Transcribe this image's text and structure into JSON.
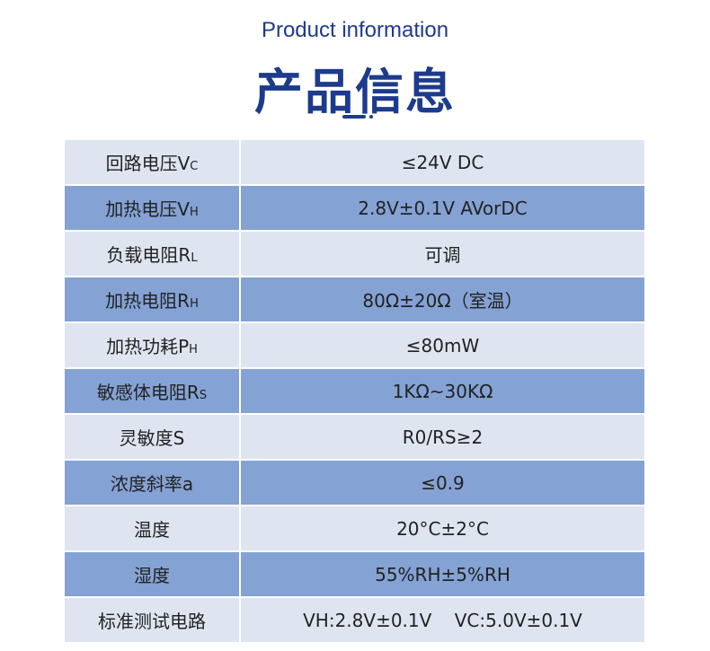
{
  "header": {
    "title_en": "Product information",
    "title_zh": "产品信息",
    "accent": "#1d3b8d"
  },
  "colors": {
    "row_light": "#dfe5f0",
    "row_dark": "#84a2d4"
  },
  "rows": [
    {
      "label": "回路电压V",
      "sub": "C",
      "value": "≤24V DC"
    },
    {
      "label": "加热电压V",
      "sub": "H",
      "value": "2.8V±0.1V AVorDC"
    },
    {
      "label": "负载电阻R",
      "sub": "L",
      "value": "可调"
    },
    {
      "label": "加热电阻R",
      "sub": "H",
      "value": "80Ω±20Ω（室温）"
    },
    {
      "label": "加热功耗P",
      "sub": "H",
      "value": "≤80mW"
    },
    {
      "label": "敏感体电阻R",
      "sub": "S",
      "value": "1KΩ~30KΩ"
    },
    {
      "label": "灵敏度S",
      "sub": "",
      "value": "R0/RS≥2"
    },
    {
      "label": "浓度斜率a",
      "sub": "",
      "value": "≤0.9"
    },
    {
      "label": "温度",
      "sub": "",
      "value": "20°C±2°C"
    },
    {
      "label": "湿度",
      "sub": "",
      "value": "55%RH±5%RH"
    },
    {
      "label": "标准测试电路",
      "sub": "",
      "value": "VH:2.8V±0.1V    VC:5.0V±0.1V"
    }
  ]
}
